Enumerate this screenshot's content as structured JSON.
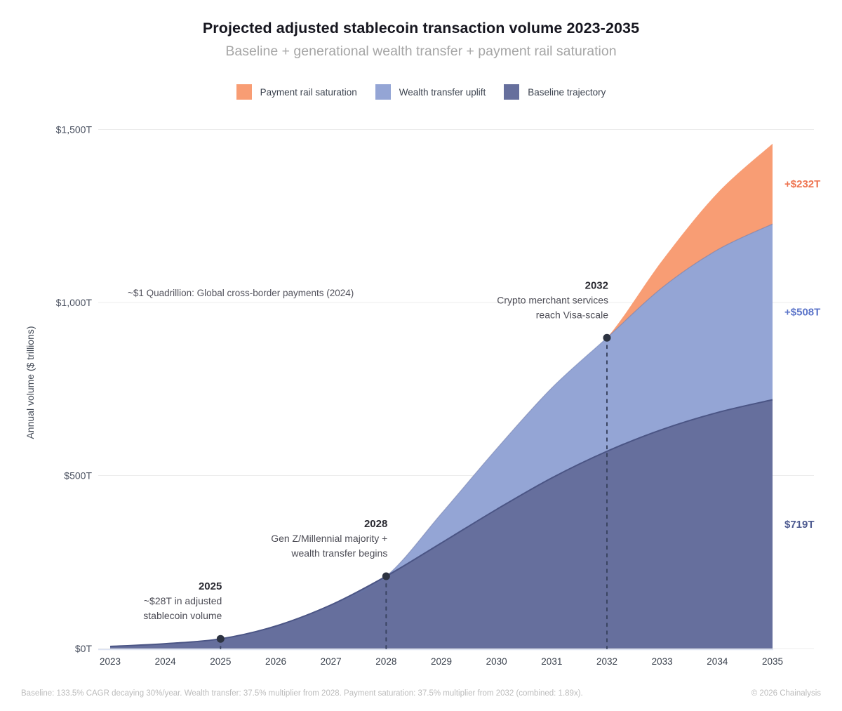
{
  "header": {
    "title": "Projected adjusted stablecoin transaction volume 2023-2035",
    "subtitle": "Baseline + generational wealth transfer + payment rail saturation"
  },
  "legend": [
    {
      "label": "Payment rail saturation",
      "color": "#f89d74"
    },
    {
      "label": "Wealth transfer uplift",
      "color": "#94a5d5"
    },
    {
      "label": "Baseline trajectory",
      "color": "#666f9d"
    }
  ],
  "chart_data": {
    "type": "area",
    "stacked": true,
    "title": "Projected adjusted stablecoin transaction volume 2023-2035",
    "xlabel": "",
    "ylabel": "Annual volume ($ trillions)",
    "x": [
      2023,
      2024,
      2025,
      2026,
      2027,
      2028,
      2029,
      2030,
      2031,
      2032,
      2033,
      2034,
      2035
    ],
    "series": [
      {
        "name": "Baseline trajectory",
        "color": "#666f9d",
        "values": [
          6,
          14,
          28,
          65,
          126,
          209,
          305,
          402,
          493,
          570,
          633,
          682,
          719
        ]
      },
      {
        "name": "Wealth transfer uplift",
        "color": "#94a5d5",
        "values": [
          0,
          0,
          0,
          0,
          0,
          0,
          85,
          175,
          260,
          328,
          410,
          470,
          508
        ]
      },
      {
        "name": "Payment rail saturation",
        "color": "#f89d74",
        "values": [
          0,
          0,
          0,
          0,
          0,
          0,
          0,
          0,
          0,
          0,
          78,
          164,
          232
        ]
      }
    ],
    "ylim": [
      0,
      1500
    ],
    "ytick_values": [
      0,
      500,
      1000,
      1500
    ],
    "yticks": [
      "$0T",
      "$500T",
      "$1,000T",
      "$1,500T"
    ],
    "grid": true,
    "legend_position": "top"
  },
  "annotations": {
    "reference_note": {
      "text": "~$1 Quadrillion: Global cross-border payments (2024)",
      "value": 1000
    },
    "markers": [
      {
        "year": 2025,
        "value": 28,
        "title": "2025",
        "lines": [
          "~$28T in adjusted",
          "stablecoin volume"
        ]
      },
      {
        "year": 2028,
        "value": 209,
        "title": "2028",
        "lines": [
          "Gen Z/Millennial majority +",
          "wealth transfer begins"
        ]
      },
      {
        "year": 2032,
        "value": 898,
        "title": "2032",
        "lines": [
          "Crypto merchant services",
          "reach Visa-scale"
        ]
      }
    ]
  },
  "end_labels": [
    {
      "text": "+$232T",
      "color": "#ee7450",
      "series": "Payment rail saturation"
    },
    {
      "text": "+$508T",
      "color": "#5b74c9",
      "series": "Wealth transfer uplift"
    },
    {
      "text": "$719T",
      "color": "#4d5a90",
      "series": "Baseline trajectory"
    }
  ],
  "footer": {
    "left": "Baseline: 133.5% CAGR decaying 30%/year. Wealth transfer: 37.5% multiplier from 2028. Payment saturation: 37.5% multiplier from 2032 (combined: 1.89x).",
    "right": "© 2026 Chainalysis"
  }
}
